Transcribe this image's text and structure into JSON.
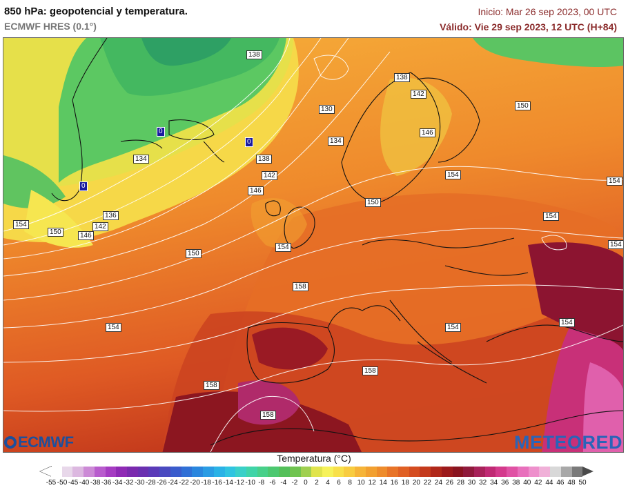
{
  "header": {
    "title": "850 hPa: geopotencial y temperatura.",
    "model": "ECMWF HRES (0.1°)",
    "init": "Inicio: Mar 26 sep 2023, 00 UTC",
    "valid": "Válido: Vie 29 sep 2023, 12 UTC (H+84)"
  },
  "logos": {
    "ecmwf": "ECMWF",
    "meteored": "METEORED"
  },
  "map": {
    "region": "Europe and North Atlantic",
    "contour_labels": [
      "138",
      "138",
      "142",
      "130",
      "150",
      "146",
      "134",
      "138",
      "142",
      "146",
      "154",
      "154",
      "134",
      "136",
      "142",
      "146",
      "150",
      "154",
      "150",
      "154",
      "154",
      "154",
      "150",
      "158",
      "154",
      "154",
      "158",
      "154",
      "158",
      "158"
    ],
    "zero_labels": [
      "0",
      "0",
      "0"
    ]
  },
  "colorbar": {
    "title": "Temperatura (°C)",
    "ticks": [
      "-55",
      "-50",
      "-45",
      "-40",
      "-38",
      "-36",
      "-34",
      "-32",
      "-30",
      "-28",
      "-26",
      "-24",
      "-22",
      "-20",
      "-18",
      "-16",
      "-14",
      "-12",
      "-10",
      "-8",
      "-6",
      "-4",
      "-2",
      "0",
      "2",
      "4",
      "6",
      "8",
      "10",
      "12",
      "14",
      "16",
      "18",
      "20",
      "22",
      "24",
      "26",
      "28",
      "30",
      "32",
      "34",
      "36",
      "38",
      "40",
      "42",
      "44",
      "46",
      "48",
      "50"
    ],
    "colors": [
      "#ffffff",
      "#e8d8ea",
      "#dcb8e0",
      "#cc8ad6",
      "#b85ccd",
      "#a53cc2",
      "#8f2ab5",
      "#7a2aae",
      "#6a30b0",
      "#5a3ab8",
      "#4a4ac0",
      "#3a5ccc",
      "#3070d6",
      "#2a86de",
      "#2a9ce4",
      "#2ab2e6",
      "#30c4e0",
      "#3ad0c8",
      "#40d4a8",
      "#48d08a",
      "#4cc870",
      "#54c05a",
      "#70c450",
      "#a0d050",
      "#e0e44c",
      "#f6f25a",
      "#f8e04a",
      "#f8cc40",
      "#f6b438",
      "#f2a030",
      "#ee8c2c",
      "#e87428",
      "#e06024",
      "#d44c20",
      "#c43a1c",
      "#b0281a",
      "#9c1a1c",
      "#8a1420",
      "#901a3c",
      "#a8225a",
      "#c02a74",
      "#d43a8c",
      "#e052a4",
      "#e870bc",
      "#ee90cc",
      "#f0b0d8",
      "#d8d8d8",
      "#a8a8a8",
      "#7a7a7a"
    ]
  }
}
